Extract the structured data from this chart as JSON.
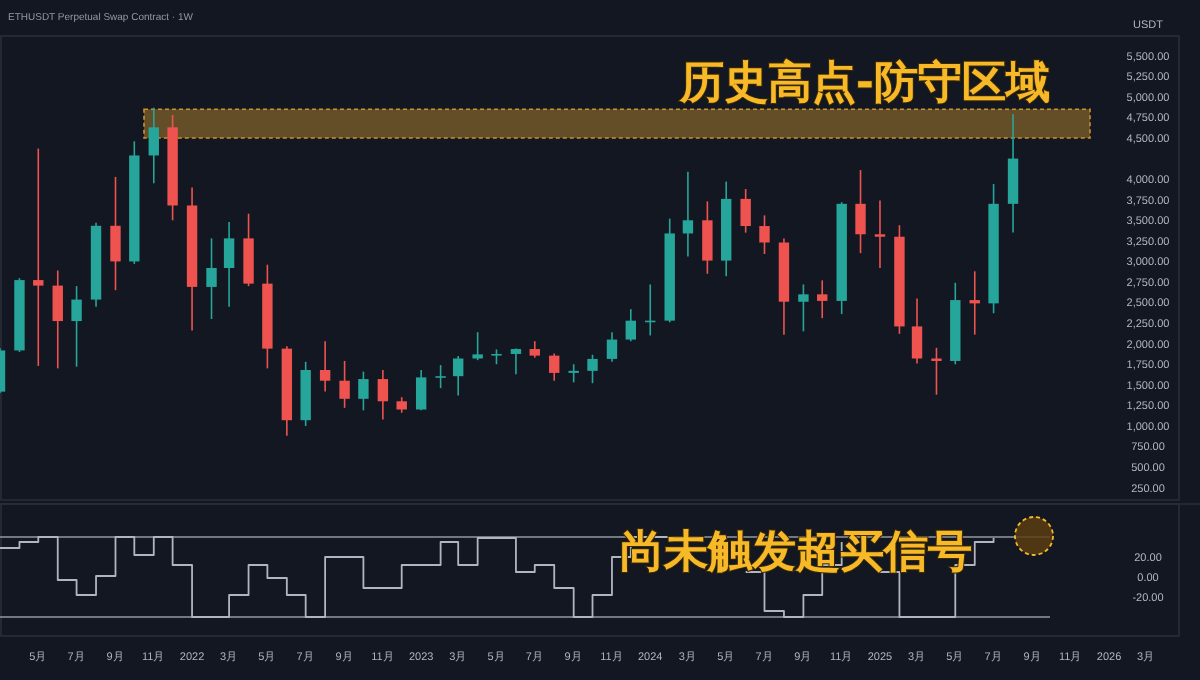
{
  "chart_data": [
    {
      "type": "candlestick",
      "title": "ETHUSDT Perpetual Swap Contract · 1W",
      "ylabel": "USDT",
      "tick_labels": "y",
      "x": [
        "2021-03",
        "2021-04",
        "2021-05",
        "2021-06",
        "2021-07",
        "2021-08",
        "2021-09",
        "2021-10",
        "2021-11",
        "2021-12",
        "2022-01",
        "2022-02",
        "2022-03",
        "2022-04",
        "2022-05",
        "2022-06",
        "2022-07",
        "2022-08",
        "2022-09",
        "2022-10",
        "2022-11",
        "2022-12",
        "2023-01",
        "2023-02",
        "2023-03",
        "2023-04",
        "2023-05",
        "2023-06",
        "2023-07",
        "2023-08",
        "2023-09",
        "2023-10",
        "2023-11",
        "2023-12",
        "2024-01",
        "2024-02",
        "2024-03",
        "2024-04",
        "2024-05",
        "2024-06",
        "2024-07",
        "2024-08",
        "2024-09",
        "2024-10",
        "2024-11",
        "2024-12",
        "2025-01",
        "2025-02",
        "2025-03",
        "2025-04",
        "2025-05",
        "2025-06",
        "2025-07",
        "2025-08"
      ],
      "ohlc": [
        [
          1417,
          1944,
          1400,
          1918
        ],
        [
          1918,
          2797,
          1900,
          2773
        ],
        [
          2773,
          4372,
          1730,
          2706
        ],
        [
          2706,
          2890,
          1700,
          2275
        ],
        [
          2275,
          2700,
          1720,
          2536
        ],
        [
          2536,
          3470,
          2450,
          3433
        ],
        [
          3433,
          4027,
          2650,
          3000
        ],
        [
          3000,
          4460,
          2970,
          4288
        ],
        [
          4288,
          4868,
          3950,
          4630
        ],
        [
          4630,
          4780,
          3500,
          3680
        ],
        [
          3680,
          3900,
          2160,
          2690
        ],
        [
          2690,
          3280,
          2300,
          2920
        ],
        [
          2920,
          3480,
          2450,
          3280
        ],
        [
          3280,
          3580,
          2700,
          2730
        ],
        [
          2730,
          2960,
          1700,
          1940
        ],
        [
          1940,
          1970,
          880,
          1070
        ],
        [
          1070,
          1780,
          1000,
          1680
        ],
        [
          1680,
          2030,
          1420,
          1550
        ],
        [
          1550,
          1790,
          1220,
          1330
        ],
        [
          1330,
          1660,
          1190,
          1570
        ],
        [
          1570,
          1680,
          1080,
          1300
        ],
        [
          1300,
          1350,
          1160,
          1200
        ],
        [
          1200,
          1680,
          1190,
          1590
        ],
        [
          1590,
          1740,
          1460,
          1605
        ],
        [
          1605,
          1850,
          1370,
          1820
        ],
        [
          1820,
          2140,
          1800,
          1870
        ],
        [
          1870,
          1930,
          1750,
          1875
        ],
        [
          1875,
          1940,
          1630,
          1935
        ],
        [
          1935,
          2030,
          1830,
          1855
        ],
        [
          1855,
          1880,
          1550,
          1645
        ],
        [
          1645,
          1750,
          1530,
          1670
        ],
        [
          1670,
          1865,
          1520,
          1815
        ],
        [
          1815,
          2140,
          1780,
          2050
        ],
        [
          2050,
          2420,
          2030,
          2280
        ],
        [
          2280,
          2720,
          2100,
          2280
        ],
        [
          2280,
          3520,
          2260,
          3340
        ],
        [
          3340,
          4090,
          3060,
          3500
        ],
        [
          3500,
          3730,
          2850,
          3010
        ],
        [
          3010,
          3970,
          2820,
          3760
        ],
        [
          3760,
          3880,
          3350,
          3430
        ],
        [
          3430,
          3560,
          3090,
          3230
        ],
        [
          3230,
          3280,
          2110,
          2510
        ],
        [
          2510,
          2720,
          2150,
          2600
        ],
        [
          2600,
          2770,
          2310,
          2520
        ],
        [
          2520,
          3720,
          2360,
          3700
        ],
        [
          3700,
          4110,
          3100,
          3330
        ],
        [
          3330,
          3740,
          2920,
          3300
        ],
        [
          3300,
          3440,
          2120,
          2210
        ],
        [
          2210,
          2550,
          1760,
          1820
        ],
        [
          1820,
          1950,
          1380,
          1790
        ],
        [
          1790,
          2740,
          1750,
          2530
        ],
        [
          2530,
          2880,
          2110,
          2490
        ],
        [
          2490,
          3940,
          2370,
          3700
        ],
        [
          3700,
          4790,
          3350,
          4250
        ]
      ],
      "colors": [
        "#26a69a",
        "#26a69a",
        "#ef5350",
        "#ef5350",
        "#26a69a",
        "#26a69a",
        "#ef5350",
        "#26a69a",
        "#26a69a",
        "#ef5350",
        "#ef5350",
        "#26a69a",
        "#26a69a",
        "#ef5350",
        "#ef5350",
        "#ef5350",
        "#26a69a",
        "#ef5350",
        "#ef5350",
        "#26a69a",
        "#ef5350",
        "#ef5350",
        "#26a69a",
        "#26a69a",
        "#26a69a",
        "#26a69a",
        "#26a69a",
        "#26a69a",
        "#ef5350",
        "#ef5350",
        "#26a69a",
        "#26a69a",
        "#26a69a",
        "#26a69a",
        "#26a69a",
        "#26a69a",
        "#26a69a",
        "#ef5350",
        "#26a69a",
        "#ef5350",
        "#ef5350",
        "#ef5350",
        "#26a69a",
        "#ef5350",
        "#26a69a",
        "#ef5350",
        "#ef5350",
        "#ef5350",
        "#ef5350",
        "#ef5350",
        "#26a69a",
        "#ef5350",
        "#26a69a",
        "#26a69a"
      ],
      "xlim": [
        "2021-03-01",
        "2026-04-24"
      ],
      "ylim": [
        100,
        5740
      ],
      "yticks": [
        {
          "value": 250,
          "label": "250.00"
        },
        {
          "value": 500,
          "label": "500.00"
        },
        {
          "value": 750,
          "label": "750.00"
        },
        {
          "value": 1000,
          "label": "1,000.00"
        },
        {
          "value": 1250,
          "label": "1,250.00"
        },
        {
          "value": 1500,
          "label": "1,500.00"
        },
        {
          "value": 1750,
          "label": "1,750.00"
        },
        {
          "value": 2000,
          "label": "2,000.00"
        },
        {
          "value": 2250,
          "label": "2,250.00"
        },
        {
          "value": 2500,
          "label": "2,500.00"
        },
        {
          "value": 2750,
          "label": "2,750.00"
        },
        {
          "value": 3000,
          "label": "3,000.00"
        },
        {
          "value": 3250,
          "label": "3,250.00"
        },
        {
          "value": 3500,
          "label": "3,500.00"
        },
        {
          "value": 3750,
          "label": "3,750.00"
        },
        {
          "value": 4000,
          "label": "4,000.00"
        },
        {
          "value": 4500,
          "label": "4,500.00"
        },
        {
          "value": 4750,
          "label": "4,750.00"
        },
        {
          "value": 5000,
          "label": "5,000.00"
        },
        {
          "value": 5250,
          "label": "5,250.00"
        },
        {
          "value": 5500,
          "label": "5,500.00"
        }
      ],
      "bands": [
        {
          "axis": "y",
          "from": 4500,
          "to": 4850,
          "label": "历史高点-防守区域",
          "color": "#c8922e"
        }
      ]
    },
    {
      "type": "step",
      "xlim": [
        "2021-03-01",
        "2026-04-24"
      ],
      "ylim": [
        -59,
        73
      ],
      "x": [
        "2021-03",
        "2021-04",
        "2021-05",
        "2021-06",
        "2021-07",
        "2021-08",
        "2021-09",
        "2021-10",
        "2021-11",
        "2021-12",
        "2022-01",
        "2022-02",
        "2022-03",
        "2022-04",
        "2022-05",
        "2022-06",
        "2022-07",
        "2022-08",
        "2022-09",
        "2022-10",
        "2022-11",
        "2022-12",
        "2023-01",
        "2023-02",
        "2023-03",
        "2023-04",
        "2023-05",
        "2023-06",
        "2023-07",
        "2023-08",
        "2023-09",
        "2023-10",
        "2023-11",
        "2023-12",
        "2024-01",
        "2024-02",
        "2024-03",
        "2024-04",
        "2024-05",
        "2024-06",
        "2024-07",
        "2024-08",
        "2024-09",
        "2024-10",
        "2024-11",
        "2024-12",
        "2025-01",
        "2025-02",
        "2025-03",
        "2025-04",
        "2025-05",
        "2025-06",
        "2025-07"
      ],
      "series": [
        {
          "color": "#b2b5be",
          "values": [
            29,
            35,
            40,
            -3,
            -18,
            1,
            40,
            22,
            40,
            12,
            -40,
            -40,
            -18,
            12,
            -1,
            -18,
            -40,
            20,
            20,
            -11,
            -11,
            12,
            12,
            35,
            12,
            39,
            39,
            5,
            12,
            -11,
            -40,
            -18,
            20,
            40,
            40,
            40,
            null,
            null,
            null,
            5,
            -34,
            -40,
            -18,
            12,
            35,
            null,
            5,
            -40,
            -40,
            -40,
            12,
            35,
            39
          ]
        }
      ],
      "ref_lines": [
        {
          "axis": "y",
          "value": 40,
          "color": "#9598a1"
        },
        {
          "axis": "y",
          "value": -40,
          "color": "#9598a1"
        }
      ],
      "annotations": [
        "尚未触发超买信号"
      ],
      "yticks": [
        {
          "value": 20,
          "label": "20.00"
        },
        {
          "value": 0,
          "label": "0.00"
        },
        {
          "value": -20,
          "label": "-20.00"
        }
      ],
      "xticks": [
        {
          "value": "2021-05",
          "label": "5月"
        },
        {
          "value": "2021-07",
          "label": "7月"
        },
        {
          "value": "2021-09",
          "label": "9月"
        },
        {
          "value": "2021-11",
          "label": "11月"
        },
        "2022",
        {
          "value": "2022-03",
          "label": "3月"
        },
        {
          "value": "2022-05",
          "label": "5月"
        },
        {
          "value": "2022-07",
          "label": "7月"
        },
        {
          "value": "2022-09",
          "label": "9月"
        },
        {
          "value": "2022-11",
          "label": "11月"
        },
        "2023",
        {
          "value": "2023-03",
          "label": "3月"
        },
        {
          "value": "2023-05",
          "label": "5月"
        },
        {
          "value": "2023-07",
          "label": "7月"
        },
        {
          "value": "2023-09",
          "label": "9月"
        },
        {
          "value": "2023-11",
          "label": "11月"
        },
        "2024",
        {
          "value": "2024-03",
          "label": "3月"
        },
        {
          "value": "2024-05",
          "label": "5月"
        },
        {
          "value": "2024-07",
          "label": "7月"
        },
        {
          "value": "2024-09",
          "label": "9月"
        },
        {
          "value": "2024-11",
          "label": "11月"
        },
        "2025",
        {
          "value": "2025-03",
          "label": "3月"
        },
        {
          "value": "2025-05",
          "label": "5月"
        },
        {
          "value": "2025-07",
          "label": "7月"
        },
        {
          "value": "2025-09",
          "label": "9月"
        },
        {
          "value": "2025-11",
          "label": "11月"
        },
        "2026",
        {
          "value": "2026-03",
          "label": "3月"
        }
      ]
    }
  ]
}
